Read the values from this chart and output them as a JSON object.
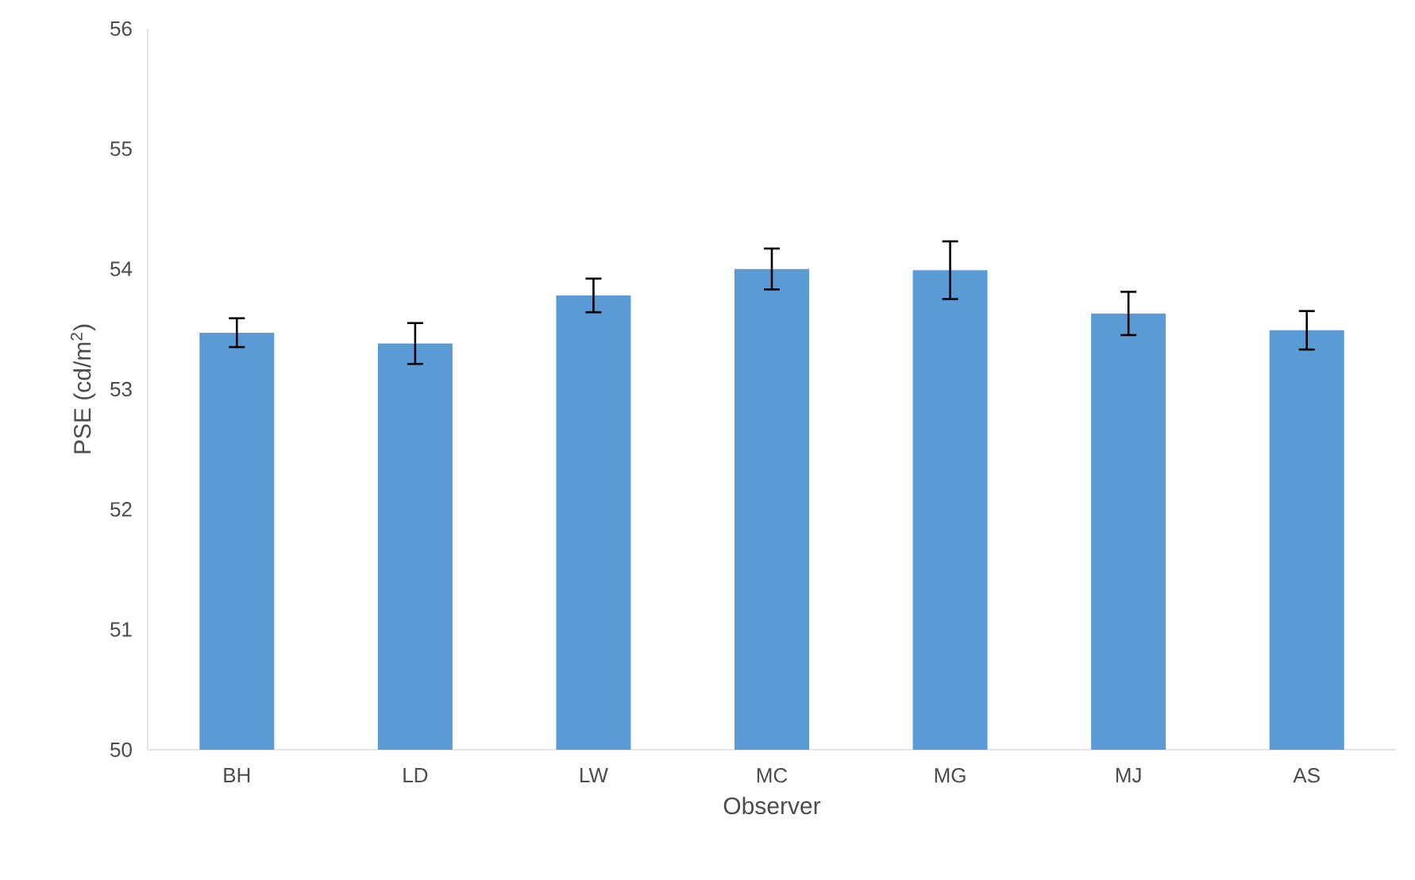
{
  "chart_data": {
    "type": "bar",
    "xlabel": "Observer",
    "ylabel": "PSE (cd/m$^{2}$)",
    "categories": [
      "BH",
      "LD",
      "LW",
      "MC",
      "MG",
      "MJ",
      "AS"
    ],
    "values": [
      53.47,
      53.38,
      53.78,
      54.0,
      53.99,
      53.63,
      53.49
    ],
    "errors": [
      0.12,
      0.17,
      0.14,
      0.17,
      0.24,
      0.18,
      0.16
    ],
    "color": "#5b9bd5",
    "ylim": [
      50,
      56
    ],
    "yticks": [
      50,
      51,
      52,
      53,
      54,
      55,
      56
    ],
    "grid": false,
    "legend": false
  }
}
